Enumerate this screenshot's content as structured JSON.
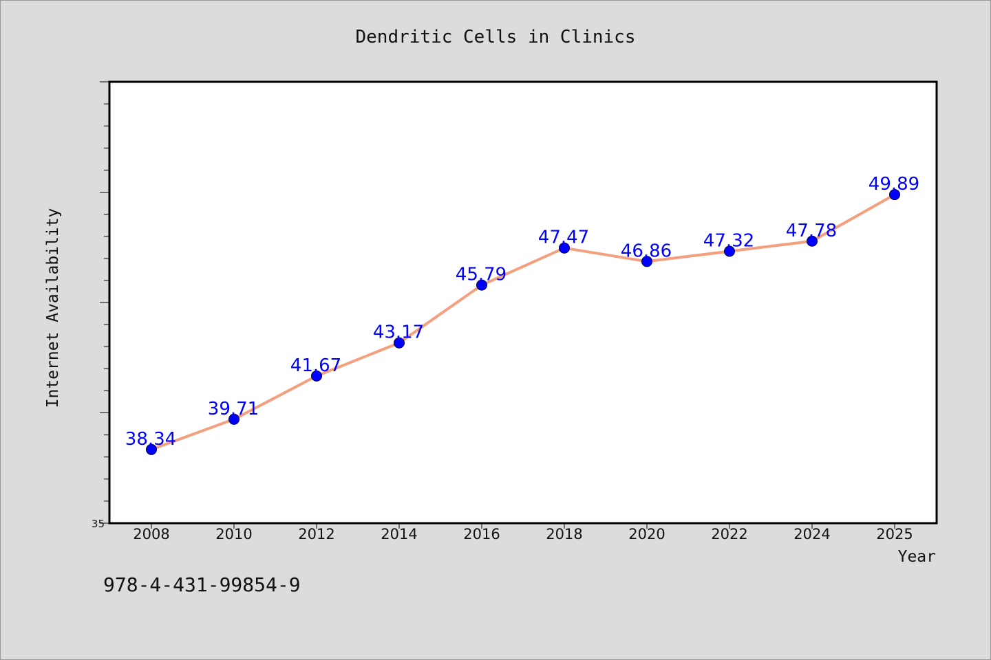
{
  "chart_data": {
    "type": "line",
    "title": "Dendritic Cells in Clinics",
    "xlabel": "Year",
    "ylabel": "Internet Availability",
    "x": [
      "2008",
      "2010",
      "2012",
      "2014",
      "2016",
      "2018",
      "2020",
      "2022",
      "2024",
      "2025"
    ],
    "series": [
      {
        "values": [
          38.34,
          39.71,
          41.67,
          43.17,
          45.79,
          47.47,
          46.86,
          47.32,
          47.78,
          49.89
        ],
        "data_labels": [
          "38.34",
          "39.71",
          "41.67",
          "43.17",
          "45.79",
          "47.47",
          "46.86",
          "47.32",
          "47.78",
          "49.89"
        ]
      }
    ],
    "ylim": [
      35,
      55
    ],
    "y_tick_labels": [
      "35"
    ],
    "grid": false,
    "legend": "none",
    "colors": {
      "line": "#f4a07e",
      "marker": "#0000ff",
      "data_label": "#0000ff",
      "plot_background": "#ffffff",
      "page_background": "#dcdcdc"
    }
  },
  "footnote": "978-4-431-99854-9"
}
